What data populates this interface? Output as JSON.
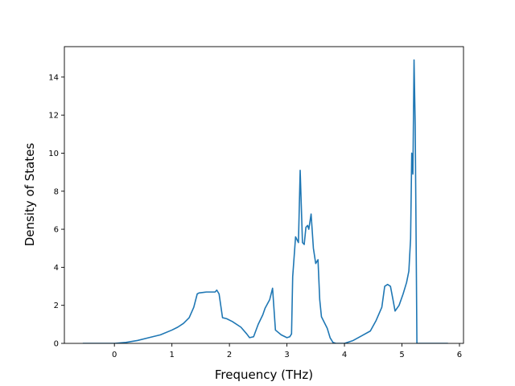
{
  "chart_data": {
    "type": "line",
    "title": "",
    "xlabel": "Frequency (THz)",
    "ylabel": "Density of States",
    "xlim": [
      -0.87,
      6.07
    ],
    "ylim": [
      0,
      15.6
    ],
    "xticks": [
      0,
      1,
      2,
      3,
      4,
      5,
      6
    ],
    "yticks": [
      0,
      2,
      4,
      6,
      8,
      10,
      12,
      14
    ],
    "grid": false,
    "legend": "none",
    "series": [
      {
        "color": "#1f77b4",
        "x": [
          -0.55,
          -0.3,
          0.0,
          0.2,
          0.4,
          0.6,
          0.8,
          1.0,
          1.1,
          1.2,
          1.3,
          1.38,
          1.44,
          1.47,
          1.6,
          1.75,
          1.78,
          1.82,
          1.88,
          1.95,
          2.05,
          2.2,
          2.3,
          2.35,
          2.42,
          2.5,
          2.58,
          2.62,
          2.7,
          2.75,
          2.8,
          2.9,
          3.0,
          3.05,
          3.08,
          3.1,
          3.15,
          3.2,
          3.23,
          3.27,
          3.3,
          3.33,
          3.36,
          3.38,
          3.42,
          3.46,
          3.5,
          3.54,
          3.57,
          3.6,
          3.7,
          3.75,
          3.8,
          3.85,
          4.0,
          4.15,
          4.3,
          4.45,
          4.55,
          4.65,
          4.7,
          4.75,
          4.8,
          4.85,
          4.88,
          4.95,
          5.02,
          5.08,
          5.12,
          5.15,
          5.17,
          5.19,
          5.21,
          5.23,
          5.25,
          5.26,
          5.4,
          5.6,
          5.8
        ],
        "y": [
          0.0,
          0.0,
          0.0,
          0.05,
          0.15,
          0.3,
          0.45,
          0.7,
          0.85,
          1.05,
          1.35,
          1.9,
          2.6,
          2.65,
          2.7,
          2.7,
          2.8,
          2.6,
          1.35,
          1.3,
          1.15,
          0.85,
          0.5,
          0.3,
          0.35,
          1.0,
          1.5,
          1.85,
          2.3,
          2.9,
          0.7,
          0.45,
          0.3,
          0.35,
          0.5,
          3.5,
          5.6,
          5.3,
          9.1,
          5.3,
          5.2,
          6.1,
          6.2,
          6.0,
          6.8,
          5.0,
          4.2,
          4.4,
          2.3,
          1.4,
          0.8,
          0.3,
          0.05,
          0.0,
          0.0,
          0.15,
          0.4,
          0.65,
          1.2,
          1.9,
          3.0,
          3.1,
          3.0,
          2.2,
          1.7,
          2.0,
          2.6,
          3.2,
          3.8,
          5.5,
          10.0,
          8.9,
          14.9,
          11.5,
          4.0,
          0.0,
          0.0,
          0.0,
          0.0
        ]
      }
    ]
  }
}
